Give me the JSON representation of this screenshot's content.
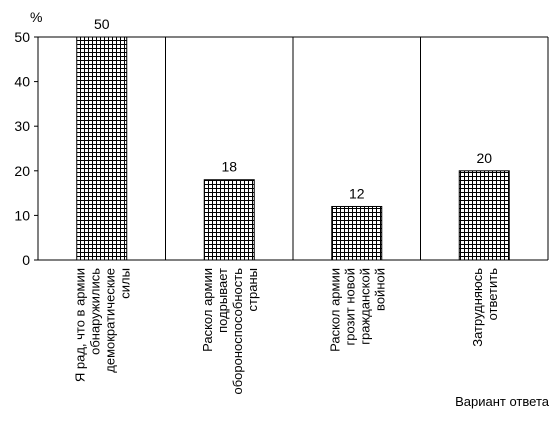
{
  "chart_data": {
    "type": "bar",
    "ylabel": "%",
    "xlabel": "Вариант ответа",
    "ylim": [
      0,
      50
    ],
    "yticks": [
      "0",
      "10",
      "20",
      "30",
      "40",
      "50"
    ],
    "grid": "vertical lines at category boundaries",
    "categories": [
      [
        "Я рад, что в армии",
        "обнаружились",
        "демократические",
        "силы"
      ],
      [
        "Раскол армии",
        "подрывает",
        "обороноспособность",
        "страны"
      ],
      [
        "Раскол армии",
        "грозит новой",
        "гражданской",
        "войной"
      ],
      [
        "Затрудняюсь",
        "ответить"
      ]
    ],
    "values": [
      50,
      18,
      12,
      20
    ],
    "value_labels": [
      "50",
      "18",
      "12",
      "20"
    ]
  }
}
